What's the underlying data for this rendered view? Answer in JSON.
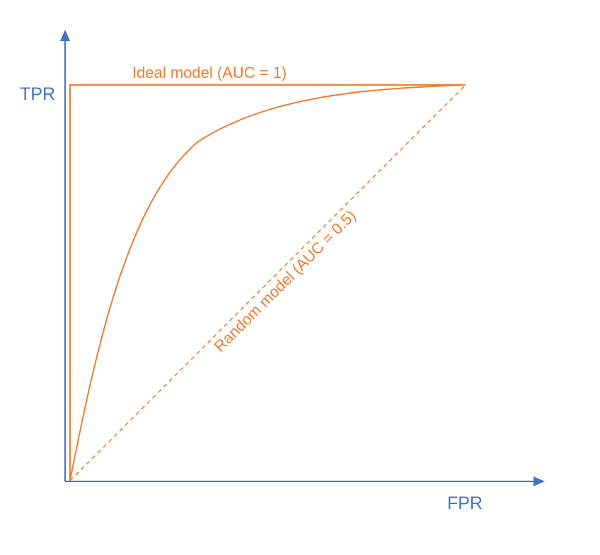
{
  "colors": {
    "axis": "#4472C4",
    "curve": "#ED7D31",
    "background": "#FFFFFF"
  },
  "axes": {
    "y_label": "TPR",
    "x_label": "FPR"
  },
  "labels": {
    "ideal": "Ideal model (AUC = 1)",
    "random": "Random model (AUC = 0.5)"
  }
}
